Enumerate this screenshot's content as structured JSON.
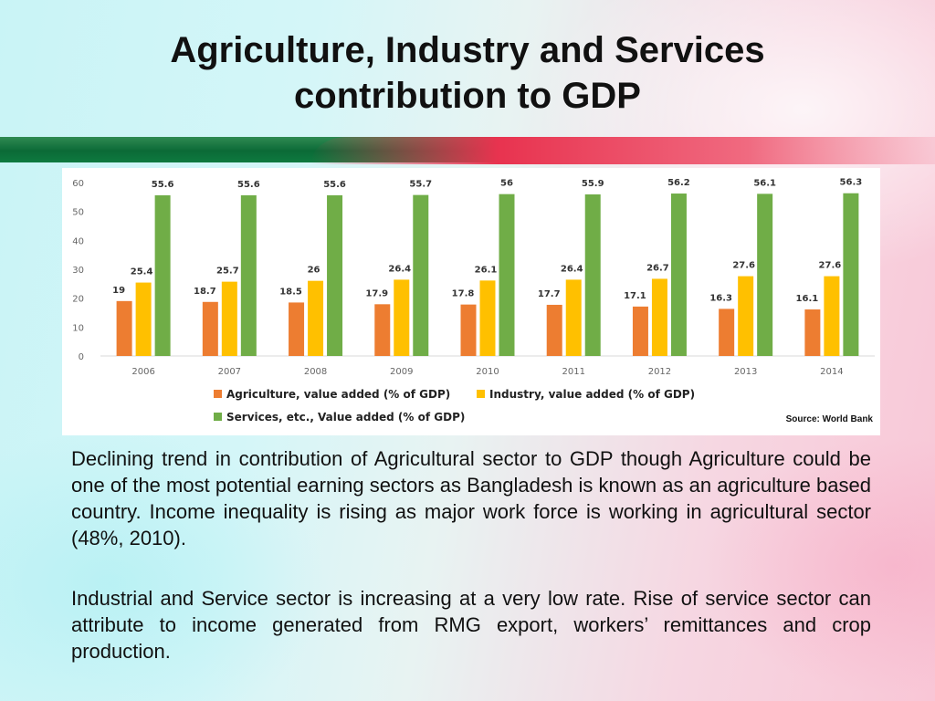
{
  "title": {
    "line1": "Agriculture, Industry and Services",
    "line2": "contribution to GDP"
  },
  "colors": {
    "agriculture": "#ED7D31",
    "industry": "#FFC000",
    "services": "#70AD47"
  },
  "chart_data": {
    "type": "bar",
    "categories": [
      "2006",
      "2007",
      "2008",
      "2009",
      "2010",
      "2011",
      "2012",
      "2013",
      "2014"
    ],
    "series": [
      {
        "name": "Agriculture, value added (% of GDP)",
        "values": [
          19,
          18.7,
          18.5,
          17.9,
          17.8,
          17.7,
          17.1,
          16.3,
          16.1
        ]
      },
      {
        "name": "Industry, value added (% of GDP)",
        "values": [
          25.4,
          25.7,
          26,
          26.4,
          26.1,
          26.4,
          26.7,
          27.6,
          27.6
        ]
      },
      {
        "name": "Services, etc., Value added (% of GDP)",
        "values": [
          55.6,
          55.6,
          55.6,
          55.7,
          56,
          55.9,
          56.2,
          56.1,
          56.3
        ]
      }
    ],
    "yticks": [
      0,
      10,
      20,
      30,
      40,
      50,
      60
    ],
    "ylim": [
      0,
      60
    ],
    "title": "",
    "xlabel": "",
    "ylabel": "",
    "legend_position": "bottom",
    "source": "Source: World Bank"
  },
  "paragraphs": {
    "p1": "Declining trend in contribution of Agricultural sector to GDP though Agriculture could be one of the most potential earning sectors as Bangladesh is known as an agriculture based country. Income inequality is rising as major work force is working in agricultural sector (48%, 2010).",
    "p2": "Industrial and Service sector is increasing at a very low rate. Rise of service sector can attribute to income generated from RMG export, workers’ remittances and crop production."
  }
}
